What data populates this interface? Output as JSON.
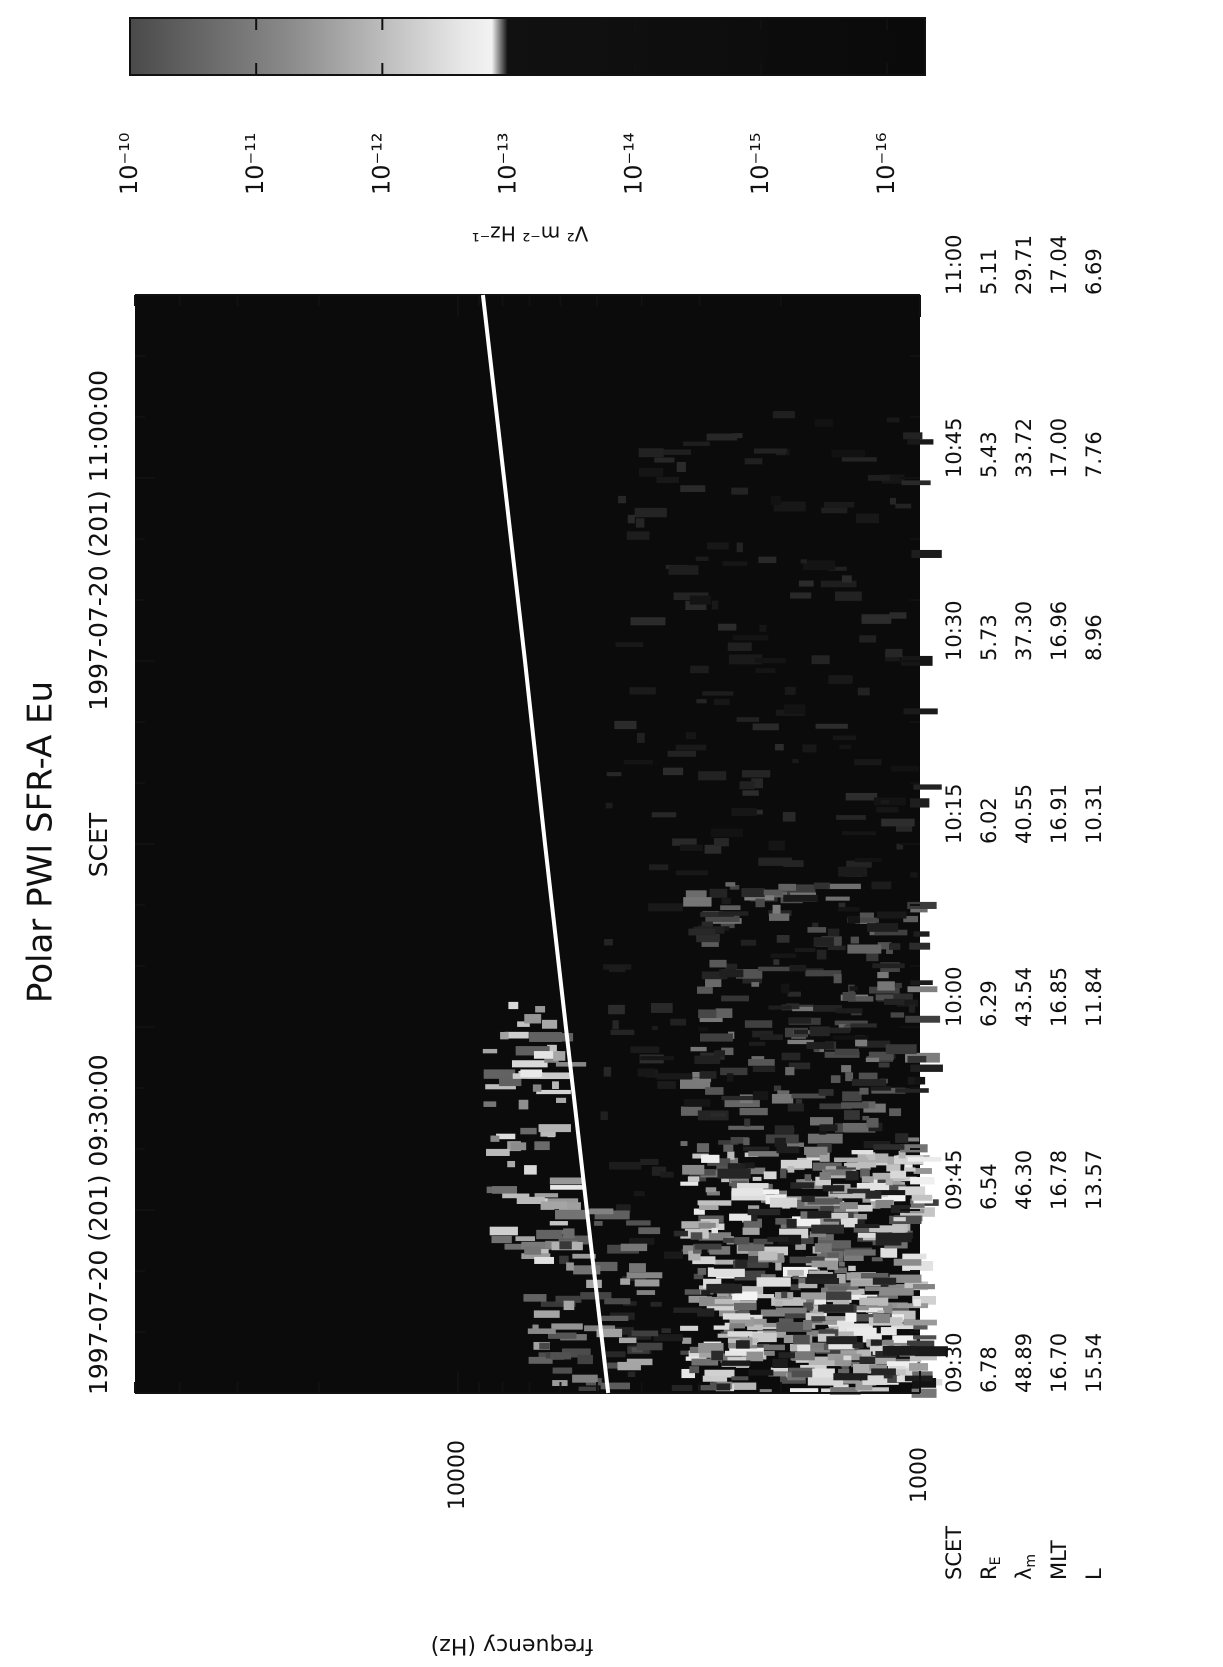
{
  "chart_data": {
    "type": "spectrogram",
    "title": "Polar PWI SFR-A Eu",
    "subtitle": [
      "1997-07-20 (201) 09:30:00",
      "SCET",
      "1997-07-20 (201) 11:00:00"
    ],
    "ylabel": "frequency (Hz)",
    "ylog": true,
    "ylim": [
      1000,
      50000
    ],
    "yticks": [
      1000,
      10000
    ],
    "xlim": [
      "09:30",
      "11:00"
    ],
    "xticks": [
      "09:30",
      "09:45",
      "10:00",
      "10:15",
      "10:30",
      "10:45",
      "11:00"
    ],
    "series": [
      {
        "color": "#ffffff",
        "x": [
          "09:30",
          "09:45",
          "10:00",
          "10:15",
          "10:30",
          "10:45",
          "11:00"
        ],
        "values": [
          4730,
          5260,
          5840,
          6480,
          7160,
          7950,
          8830
        ]
      }
    ],
    "colorbar": {
      "label": "V² m⁻² Hz⁻¹",
      "log": true,
      "clim": [
        1e-10,
        5e-17
      ],
      "ticks": [
        {
          "value": 1e-10,
          "label": "10⁻¹⁰"
        },
        {
          "value": 1e-11,
          "label": "10⁻¹¹"
        },
        {
          "value": 1e-12,
          "label": "10⁻¹²"
        },
        {
          "value": 1e-13,
          "label": "10⁻¹³"
        },
        {
          "value": 1e-14,
          "label": "10⁻¹⁴"
        },
        {
          "value": 1e-15,
          "label": "10⁻¹⁵"
        },
        {
          "value": 1e-16,
          "label": "10⁻¹⁶"
        }
      ]
    },
    "ephemeris": {
      "time_label": "SCET",
      "rows": [
        {
          "label": "R",
          "sub": "E",
          "values": [
            "6.78",
            "6.54",
            "6.29",
            "6.02",
            "5.73",
            "5.43",
            "5.11"
          ]
        },
        {
          "label": "λ",
          "sub": "m",
          "values": [
            "48.89",
            "46.30",
            "43.54",
            "40.55",
            "37.30",
            "33.72",
            "29.71"
          ]
        },
        {
          "label": "MLT",
          "values": [
            "16.70",
            "16.78",
            "16.85",
            "16.91",
            "16.96",
            "17.00",
            "17.04"
          ]
        },
        {
          "label": "L",
          "values": [
            "15.54",
            "13.57",
            "11.84",
            "10.31",
            "8.96",
            "7.76",
            "6.69"
          ]
        }
      ]
    }
  }
}
